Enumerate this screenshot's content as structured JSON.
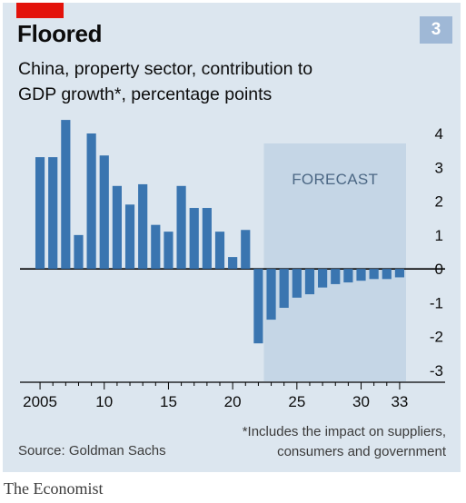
{
  "header": {
    "title": "Floored",
    "subtitle_line1": "China, property sector, contribution to",
    "subtitle_line2": "GDP growth*, percentage points",
    "badge": "3"
  },
  "colors": {
    "panel": "#dce6ef",
    "bar": "#3a75b0",
    "forecast_band": "#c5d6e6",
    "accent_red": "#e3120b"
  },
  "chart_data": {
    "type": "bar",
    "categories": [
      "2005",
      "2006",
      "2007",
      "2008",
      "2009",
      "2010",
      "2011",
      "2012",
      "2013",
      "2014",
      "2015",
      "2016",
      "2017",
      "2018",
      "2019",
      "2020",
      "2021",
      "2022",
      "2023",
      "2024",
      "2025",
      "2026",
      "2027",
      "2028",
      "2029",
      "2030",
      "2031",
      "2032",
      "2033"
    ],
    "values": [
      3.3,
      3.3,
      4.4,
      1.0,
      4.0,
      3.35,
      2.45,
      1.9,
      2.5,
      1.3,
      1.1,
      2.45,
      1.8,
      1.8,
      1.1,
      0.35,
      1.15,
      -2.2,
      -1.5,
      -1.15,
      -0.85,
      -0.75,
      -0.55,
      -0.45,
      -0.4,
      -0.35,
      -0.3,
      -0.3,
      -0.25
    ],
    "ylim": [
      -3,
      4
    ],
    "yticks": [
      "4",
      "3",
      "2",
      "1",
      "0",
      "-1",
      "-2",
      "-3"
    ],
    "xtick_labels": [
      {
        "category": "2005",
        "label": "2005"
      },
      {
        "category": "2010",
        "label": "10"
      },
      {
        "category": "2015",
        "label": "15"
      },
      {
        "category": "2020",
        "label": "20"
      },
      {
        "category": "2025",
        "label": "25"
      },
      {
        "category": "2030",
        "label": "30"
      },
      {
        "category": "2033",
        "label": "33"
      }
    ],
    "forecast_start": "2023",
    "forecast_label": "FORECAST",
    "grid": false
  },
  "footer": {
    "footnote_line1": "*Includes the impact on suppliers,",
    "footnote_line2": "consumers and government",
    "source": "Source: Goldman Sachs",
    "brand": "The Economist"
  }
}
